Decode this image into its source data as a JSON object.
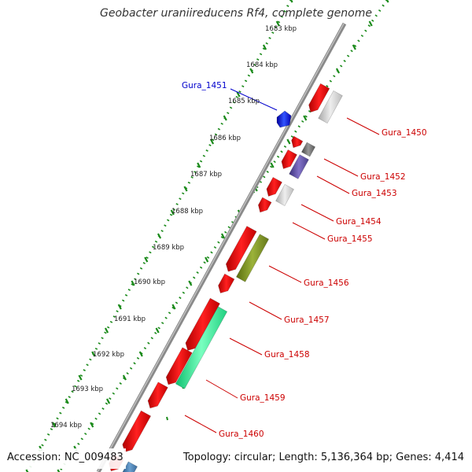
{
  "title": "Geobacter uraniireducens Rf4, complete genome",
  "accession": "Accession: NC_009483",
  "summary": "Topology: circular; Length: 5,136,364 bp; Genes: 4,414",
  "colors": {
    "backbone": "#8a8a8a",
    "ticks": "#1a8a1a",
    "label_red": "#cc0000",
    "label_blue": "#0000cc"
  },
  "kbp_labels": [
    "1683 kbp",
    "1684 kbp",
    "1685 kbp",
    "1686 kbp",
    "1687 kbp",
    "1688 kbp",
    "1689 kbp",
    "1690 kbp",
    "1691 kbp",
    "1692 kbp",
    "1693 kbp",
    "1694 kbp"
  ],
  "gene_labels": [
    {
      "name": "Gura_1450",
      "color": "red"
    },
    {
      "name": "Gura_1451",
      "color": "blue"
    },
    {
      "name": "Gura_1452",
      "color": "red"
    },
    {
      "name": "Gura_1453",
      "color": "red"
    },
    {
      "name": "Gura_1454",
      "color": "red"
    },
    {
      "name": "Gura_1455",
      "color": "red"
    },
    {
      "name": "Gura_1456",
      "color": "red"
    },
    {
      "name": "Gura_1457",
      "color": "red"
    },
    {
      "name": "Gura_1458",
      "color": "red"
    },
    {
      "name": "Gura_1459",
      "color": "red"
    },
    {
      "name": "Gura_1460",
      "color": "red"
    }
  ]
}
